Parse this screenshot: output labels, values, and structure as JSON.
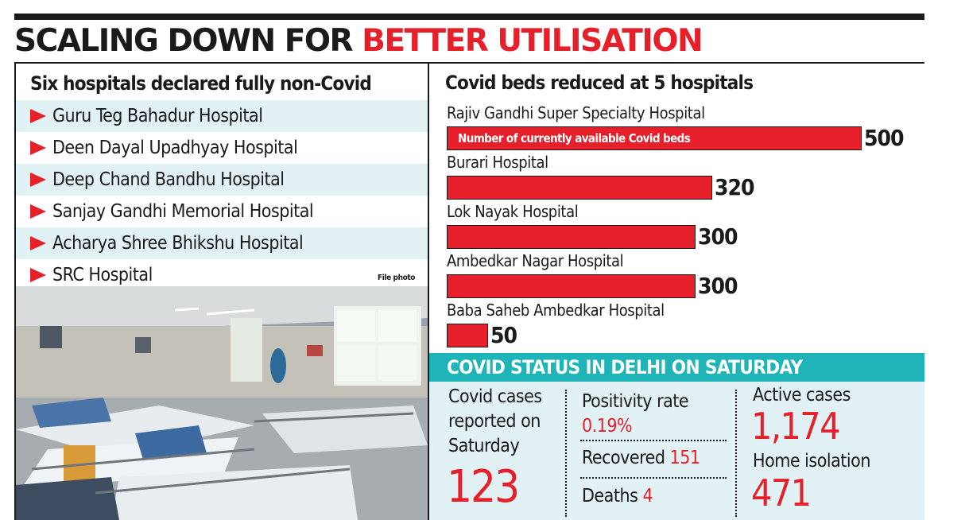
{
  "headline": {
    "part1": "SCALING DOWN FOR ",
    "part2": "BETTER UTILISATION"
  },
  "left": {
    "title": "Six hospitals declared fully non-Covid",
    "hospitals": [
      "Guru Teg Bahadur Hospital",
      "Deen Dayal Upadhyay Hospital",
      "Deep Chand Bandhu Hospital",
      "Sanjay Gandhi Memorial Hospital",
      "Acharya Shree Bhikshu Hospital",
      "SRC Hospital"
    ],
    "photo_credit": "File photo"
  },
  "colors": {
    "accent_red": "#e5202a",
    "teal": "#1fb5b8",
    "light_teal": "#e2f1f4",
    "ink": "#1a1a1a"
  },
  "chart_data": {
    "type": "bar",
    "orientation": "horizontal",
    "title": "Covid beds reduced at 5 hospitals",
    "categories": [
      "Rajiv Gandhi Super Specialty Hospital",
      "Burari Hospital",
      "Lok Nayak Hospital",
      "Ambedkar Nagar Hospital",
      "Baba Saheb Ambedkar Hospital"
    ],
    "values": [
      500,
      320,
      300,
      300,
      50
    ],
    "value_labels": [
      "500",
      "320",
      "300",
      "300",
      "50"
    ],
    "annotation": "Number of currently available Covid beds",
    "xlim": [
      0,
      500
    ],
    "grid": false
  },
  "status": {
    "title": "COVID STATUS IN DELHI ON SATURDAY",
    "cases_label": "Covid cases reported on Saturday",
    "cases_value": "123",
    "positivity_label": "Positivity rate",
    "positivity_value": "0.19%",
    "recovered_label": "Recovered",
    "recovered_value": "151",
    "deaths_label": "Deaths",
    "deaths_value": "4",
    "active_label": "Active cases",
    "active_value": "1,174",
    "home_label": "Home isolation",
    "home_value": "471"
  }
}
